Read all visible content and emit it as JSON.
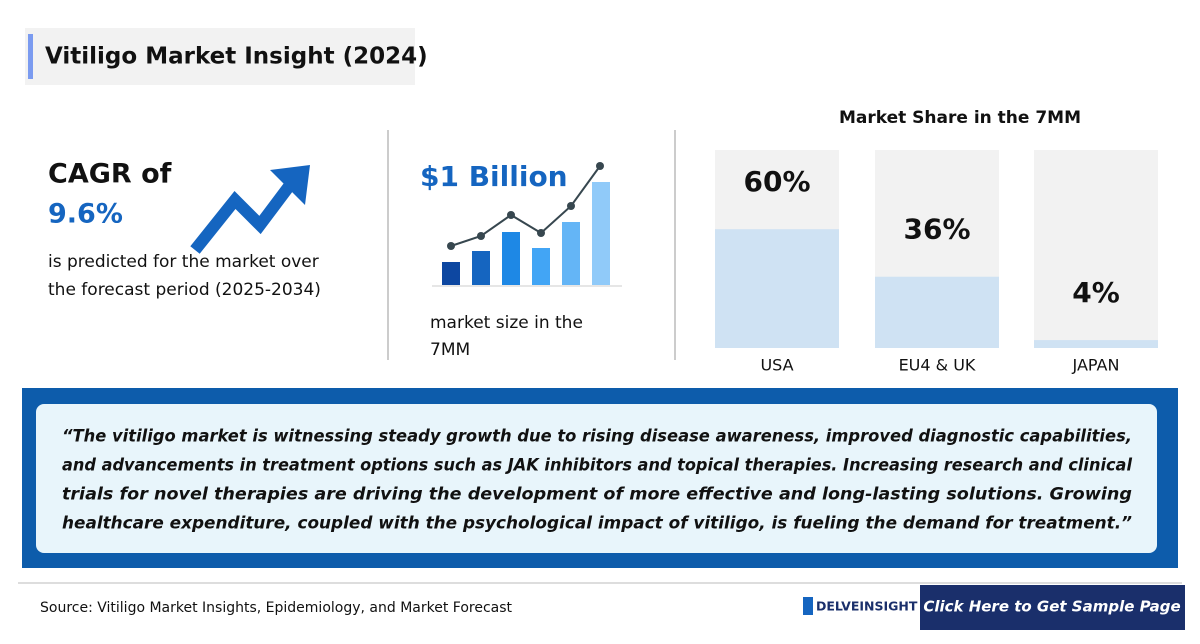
{
  "header": {
    "title": "Vitiligo Market Insight (2024)"
  },
  "cagr": {
    "heading": "CAGR of",
    "value": "9.6%",
    "description": [
      "is predicted for the market over",
      "the forecast period (2025-2034)"
    ]
  },
  "market_size": {
    "value": "$1 Billion",
    "caption": [
      "market size in the",
      "7MM"
    ]
  },
  "chart_data": {
    "type": "bar",
    "title": "Market Share in the 7MM",
    "categories": [
      "USA",
      "EU4 & UK",
      "JAPAN"
    ],
    "values": [
      60,
      36,
      4
    ],
    "value_labels": [
      "60%",
      "36%",
      "4%"
    ],
    "ylim": [
      0,
      100
    ],
    "color": "#cfe2f3"
  },
  "quote": [
    "“The vitiligo market is witnessing steady growth due to rising disease awareness, improved diagnostic capabilities,",
    "and advancements in treatment options such as JAK inhibitors and topical therapies. Increasing research and clinical",
    "trials for novel therapies are driving the development of more effective and long-lasting solutions. Growing",
    "healthcare expenditure, coupled with the psychological impact of vitiligo, is fueling the demand for treatment.”"
  ],
  "footer": {
    "source": "Source: Vitiligo Market Insights, Epidemiology, and Market Forecast",
    "logo": "DELVEINSIGHT",
    "button": "Click Here to Get Sample Page"
  }
}
